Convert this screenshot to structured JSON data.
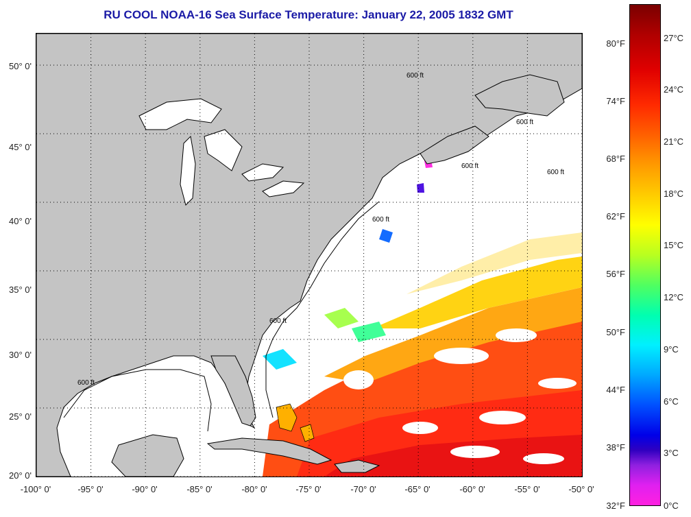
{
  "title": "RU COOL  NOAA-16  Sea Surface Temperature:  January 22, 2005 1832 GMT",
  "map": {
    "projection": "lat-lon",
    "lon_range": [
      -100,
      -50
    ],
    "lat_range": [
      20,
      52.3
    ],
    "lat_ticks": [
      "50° 0'",
      "45° 0'",
      "40° 0'",
      "35° 0'",
      "30° 0'",
      "25° 0'",
      "20° 0'"
    ],
    "lat_values": [
      50,
      45,
      40,
      35,
      30,
      25,
      20
    ],
    "lon_ticks": [
      "-100° 0'",
      "-95° 0'",
      "-90° 0'",
      "-85° 0'",
      "-80° 0'",
      "-75° 0'",
      "-70° 0'",
      "-65° 0'",
      "-60° 0'",
      "-55° 0'",
      "-50° 0'"
    ],
    "lon_values": [
      -100,
      -95,
      -90,
      -85,
      -80,
      -75,
      -70,
      -65,
      -60,
      -55,
      -50
    ],
    "grid": "dotted",
    "land_color": "#c4c4c4",
    "cloud_color": "#ffffff",
    "isobath_label": "600 ft"
  },
  "colorbar": {
    "fahrenheit_labels": [
      "80°F",
      "74°F",
      "68°F",
      "62°F",
      "56°F",
      "50°F",
      "44°F",
      "38°F",
      "32°F"
    ],
    "celsius_labels": [
      "27°C",
      "24°C",
      "21°C",
      "18°C",
      "15°C",
      "12°C",
      "9°C",
      "6°C",
      "3°C",
      "0°C"
    ],
    "celsius_values": [
      27,
      24,
      21,
      18,
      15,
      12,
      9,
      6,
      3,
      0
    ],
    "fahrenheit_values": [
      80,
      74,
      68,
      62,
      56,
      50,
      44,
      38,
      32
    ],
    "range_c": [
      0,
      29
    ]
  }
}
